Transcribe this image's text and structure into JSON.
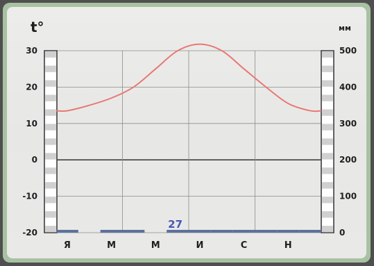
{
  "chart_data": {
    "type": "climatogram",
    "left_axis": {
      "unit_label": "t°",
      "range": [
        -20,
        30
      ],
      "ticks": [
        "30",
        "20",
        "10",
        "0",
        "-10",
        "-20"
      ]
    },
    "right_axis": {
      "unit_label": "мм",
      "range": [
        0,
        500
      ],
      "ticks": [
        "500",
        "400",
        "300",
        "200",
        "100",
        "0"
      ]
    },
    "month_labels": [
      "Я",
      "М",
      "М",
      "И",
      "С",
      "Н"
    ],
    "temperature": {
      "x": [
        1,
        2,
        3,
        4,
        5,
        6,
        7,
        8,
        9,
        10,
        11,
        12
      ],
      "y": [
        13.5,
        15,
        17,
        20,
        25,
        30,
        31.8,
        30,
        25,
        20,
        15.5,
        13.5
      ],
      "color": "#e87874"
    },
    "precipitation": {
      "x": [
        1,
        2,
        3,
        4,
        5,
        6,
        7,
        8,
        9,
        10,
        11,
        12
      ],
      "y": [
        2,
        0,
        2,
        2,
        0,
        2,
        2,
        2,
        2,
        2,
        2,
        2
      ],
      "color": "#5d719c"
    },
    "annotations": [
      {
        "text": "27",
        "month": 6,
        "value": 27
      }
    ],
    "grid": true
  }
}
